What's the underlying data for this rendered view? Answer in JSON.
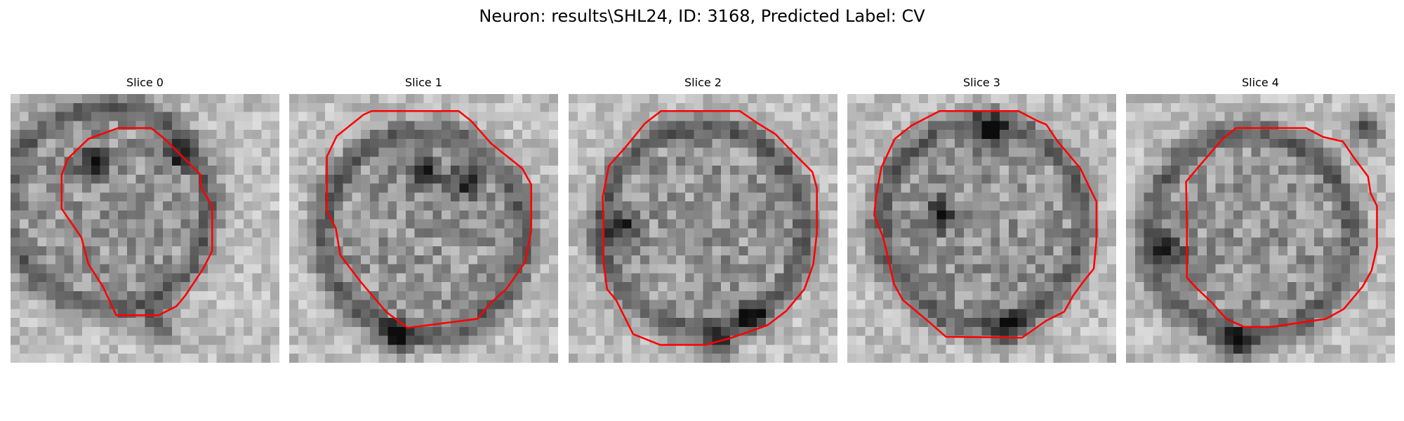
{
  "figure": {
    "title": "Neuron: results\\SHL24, ID: 3168, Predicted Label: CV"
  },
  "contour_color": "#ff0000",
  "colormap": "gray",
  "panels": [
    {
      "title": "Slice 0",
      "seed": 11,
      "center": [
        0.36,
        0.42
      ],
      "dark_blobs": [
        [
          0.55,
          0.86
        ],
        [
          0.3,
          0.25
        ],
        [
          0.62,
          0.22
        ]
      ]
    },
    {
      "title": "Slice 1",
      "seed": 23,
      "center": [
        0.5,
        0.52
      ],
      "dark_blobs": [
        [
          0.5,
          0.28
        ],
        [
          0.65,
          0.33
        ],
        [
          0.4,
          0.9
        ]
      ]
    },
    {
      "title": "Slice 2",
      "seed": 37,
      "center": [
        0.5,
        0.5
      ],
      "dark_blobs": [
        [
          0.55,
          0.93
        ],
        [
          0.2,
          0.5
        ],
        [
          0.68,
          0.83
        ]
      ]
    },
    {
      "title": "Slice 3",
      "seed": 41,
      "center": [
        0.5,
        0.48
      ],
      "dark_blobs": [
        [
          0.34,
          0.45
        ],
        [
          0.6,
          0.88
        ],
        [
          0.53,
          0.14
        ]
      ]
    },
    {
      "title": "Slice 4",
      "seed": 53,
      "center": [
        0.46,
        0.52
      ],
      "dark_blobs": [
        [
          0.16,
          0.58
        ],
        [
          0.42,
          0.93
        ],
        [
          0.9,
          0.13
        ]
      ]
    }
  ]
}
